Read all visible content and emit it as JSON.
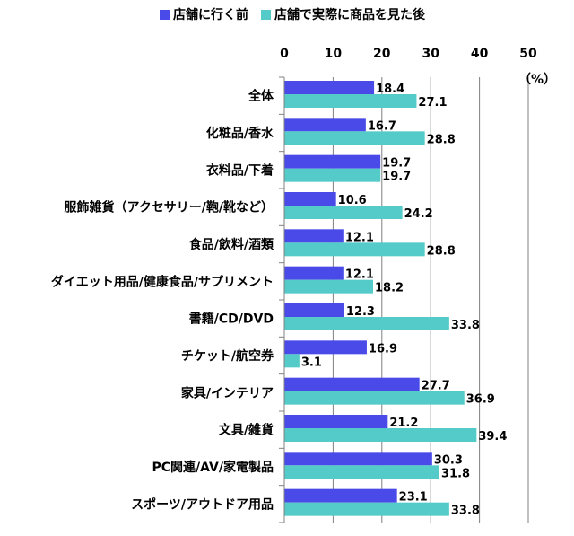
{
  "chart_data": {
    "type": "bar",
    "orientation": "horizontal",
    "title": "",
    "xlabel": "",
    "ylabel": "",
    "unit_label": "（%）",
    "xlim": [
      0,
      50
    ],
    "x_ticks": [
      0,
      10,
      20,
      30,
      40,
      50
    ],
    "grid": true,
    "legend_position": "top",
    "categories": [
      "全体",
      "化粧品/香水",
      "衣料品/下着",
      "服飾雑貨（アクセサリー/鞄/靴など）",
      "食品/飲料/酒類",
      "ダイエット用品/健康食品/サプリメント",
      "書籍/CD/DVD",
      "チケット/航空券",
      "家具/インテリア",
      "文具/雑貨",
      "PC関連/AV/家電製品",
      "スポーツ/アウトドア用品"
    ],
    "series": [
      {
        "name": "店舗に行く前",
        "color": "#4a4ae8",
        "values": [
          18.4,
          16.7,
          19.7,
          10.6,
          12.1,
          12.1,
          12.3,
          16.9,
          27.7,
          21.2,
          30.3,
          23.1
        ]
      },
      {
        "name": "店舗で実際に商品を見た後",
        "color": "#55cbc9",
        "values": [
          27.1,
          28.8,
          19.7,
          24.2,
          28.8,
          18.2,
          33.8,
          3.1,
          36.9,
          39.4,
          31.8,
          33.8
        ]
      }
    ]
  }
}
